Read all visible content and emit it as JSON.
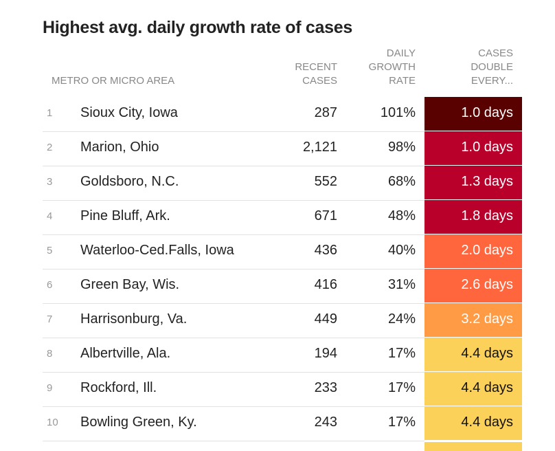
{
  "chart_data": {
    "type": "table",
    "title": "Highest avg. daily growth rate of cases",
    "columns": [
      "",
      "METRO OR MICRO AREA",
      "RECENT CASES",
      "DAILY GROWTH RATE",
      "CASES DOUBLE EVERY..."
    ],
    "header": {
      "area": "METRO OR MICRO AREA",
      "cases": [
        "RECENT",
        "CASES"
      ],
      "rate": [
        "DAILY",
        "GROWTH",
        "RATE"
      ],
      "double": [
        "CASES",
        "DOUBLE",
        "EVERY..."
      ]
    },
    "rows": [
      {
        "rank": "1",
        "name": "Sioux City, Iowa",
        "cases": "287",
        "rate": "101%",
        "double": "1.0 days",
        "color": "#590000",
        "text": "#ffffff"
      },
      {
        "rank": "2",
        "name": "Marion, Ohio",
        "cases": "2,121",
        "rate": "98%",
        "double": "1.0 days",
        "color": "#b8002b",
        "text": "#ffffff"
      },
      {
        "rank": "3",
        "name": "Goldsboro, N.C.",
        "cases": "552",
        "rate": "68%",
        "double": "1.3 days",
        "color": "#b8002b",
        "text": "#ffffff"
      },
      {
        "rank": "4",
        "name": "Pine Bluff, Ark.",
        "cases": "671",
        "rate": "48%",
        "double": "1.8 days",
        "color": "#b8002b",
        "text": "#ffffff"
      },
      {
        "rank": "5",
        "name": "Waterloo-Ced.Falls, Iowa",
        "cases": "436",
        "rate": "40%",
        "double": "2.0 days",
        "color": "#ff663d",
        "text": "#ffffff"
      },
      {
        "rank": "6",
        "name": "Green Bay, Wis.",
        "cases": "416",
        "rate": "31%",
        "double": "2.6 days",
        "color": "#ff663d",
        "text": "#ffffff"
      },
      {
        "rank": "7",
        "name": "Harrisonburg, Va.",
        "cases": "449",
        "rate": "24%",
        "double": "3.2 days",
        "color": "#ff9a45",
        "text": "#ffffff"
      },
      {
        "rank": "8",
        "name": "Albertville, Ala.",
        "cases": "194",
        "rate": "17%",
        "double": "4.4 days",
        "color": "#fcd15a",
        "text": "#111111"
      },
      {
        "rank": "9",
        "name": "Rockford, Ill.",
        "cases": "233",
        "rate": "17%",
        "double": "4.4 days",
        "color": "#fcd15a",
        "text": "#111111"
      },
      {
        "rank": "10",
        "name": "Bowling Green, Ky.",
        "cases": "243",
        "rate": "17%",
        "double": "4.4 days",
        "color": "#fcd15a",
        "text": "#111111"
      }
    ],
    "tail_color": "#fcd15a"
  }
}
